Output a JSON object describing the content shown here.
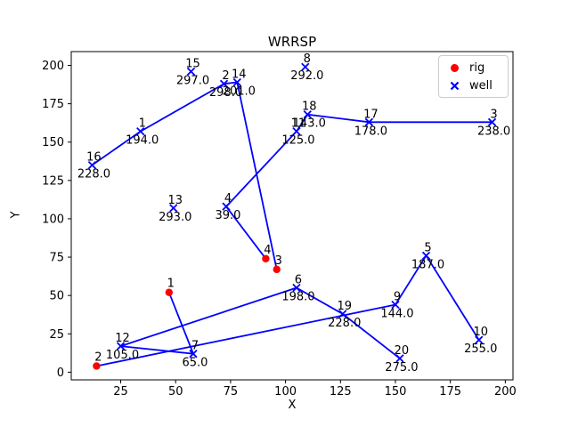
{
  "figure": {
    "title": "WRRSP"
  },
  "chart_data": {
    "type": "scatter",
    "title": "WRRSP",
    "xlabel": "X",
    "ylabel": "Y",
    "xlim": [
      2.5,
      203.5
    ],
    "ylim": [
      -5,
      209
    ],
    "xticks": [
      25,
      50,
      75,
      100,
      125,
      150,
      175,
      200
    ],
    "yticks": [
      0,
      25,
      50,
      75,
      100,
      125,
      150,
      175,
      200
    ],
    "grid": false,
    "line_color": "#0000ff",
    "rig_color": "#ff0000",
    "well_color": "#0000ff",
    "legend": {
      "position": "upper right",
      "entries": [
        {
          "label": "rig",
          "marker": "circle",
          "color": "#ff0000"
        },
        {
          "label": "well",
          "marker": "x",
          "color": "#0000ff"
        }
      ]
    },
    "rigs": [
      {
        "id": "1",
        "x": 47,
        "y": 52
      },
      {
        "id": "2",
        "x": 14,
        "y": 4
      },
      {
        "id": "3",
        "x": 96,
        "y": 67
      },
      {
        "id": "4",
        "x": 91,
        "y": 74
      }
    ],
    "wells": [
      {
        "id": "1",
        "x": 34,
        "y": 157,
        "value": "194.0"
      },
      {
        "id": "2",
        "x": 72,
        "y": 188,
        "value": "298.0"
      },
      {
        "id": "3",
        "x": 194,
        "y": 163,
        "value": "238.0"
      },
      {
        "id": "4",
        "x": 73,
        "y": 108,
        "value": "39.0"
      },
      {
        "id": "5",
        "x": 164,
        "y": 76,
        "value": "187.0"
      },
      {
        "id": "6",
        "x": 105,
        "y": 55,
        "value": "198.0"
      },
      {
        "id": "7",
        "x": 58,
        "y": 12,
        "value": "65.0"
      },
      {
        "id": "8",
        "x": 109,
        "y": 199,
        "value": "292.0"
      },
      {
        "id": "9",
        "x": 150,
        "y": 44,
        "value": "144.0"
      },
      {
        "id": "10",
        "x": 188,
        "y": 21,
        "value": "255.0"
      },
      {
        "id": "11",
        "x": 105,
        "y": 157,
        "value": "125.0"
      },
      {
        "id": "12",
        "x": 25,
        "y": 17,
        "value": "105.0"
      },
      {
        "id": "13",
        "x": 49,
        "y": 107,
        "value": "293.0"
      },
      {
        "id": "14",
        "x": 78,
        "y": 189,
        "value": "201.0"
      },
      {
        "id": "15",
        "x": 57,
        "y": 196,
        "value": "297.0"
      },
      {
        "id": "16",
        "x": 12,
        "y": 135,
        "value": "228.0"
      },
      {
        "id": "17",
        "x": 138,
        "y": 163,
        "value": "178.0"
      },
      {
        "id": "18",
        "x": 110,
        "y": 168,
        "value": "143.0"
      },
      {
        "id": "19",
        "x": 126,
        "y": 38,
        "value": "228.0"
      },
      {
        "id": "20",
        "x": 152,
        "y": 9,
        "value": "275.0"
      }
    ],
    "routes": [
      [
        "r1",
        "w7",
        "w12",
        "w6",
        "w19",
        "w20"
      ],
      [
        "r2",
        "w9",
        "w5",
        "w10"
      ],
      [
        "r3",
        "w14",
        "w2",
        "w1",
        "w16"
      ],
      [
        "r4",
        "w4",
        "w11",
        "w18",
        "w17",
        "w3"
      ]
    ]
  }
}
